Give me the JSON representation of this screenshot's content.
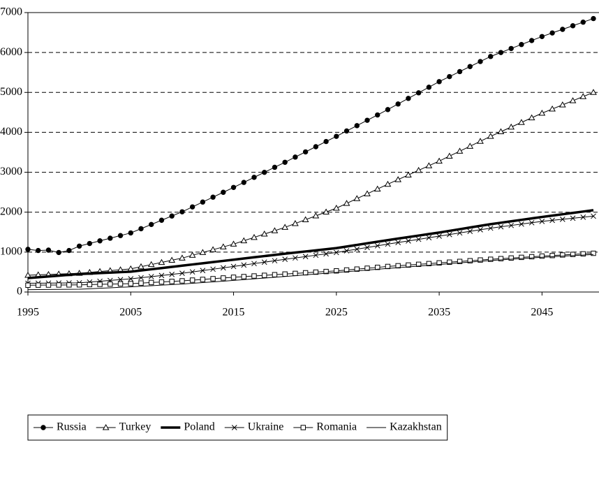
{
  "chart_data": {
    "type": "line",
    "x": [
      1995,
      1996,
      1997,
      1998,
      1999,
      2000,
      2001,
      2002,
      2003,
      2004,
      2005,
      2006,
      2007,
      2008,
      2009,
      2010,
      2011,
      2012,
      2013,
      2014,
      2015,
      2016,
      2017,
      2018,
      2019,
      2020,
      2021,
      2022,
      2023,
      2024,
      2025,
      2026,
      2027,
      2028,
      2029,
      2030,
      2031,
      2032,
      2033,
      2034,
      2035,
      2036,
      2037,
      2038,
      2039,
      2040,
      2041,
      2042,
      2043,
      2044,
      2045,
      2046,
      2047,
      2048,
      2049,
      2050
    ],
    "xlim": [
      1995,
      2050
    ],
    "xticks": [
      1995,
      2005,
      2015,
      2025,
      2035,
      2045
    ],
    "ylim": [
      0,
      7000
    ],
    "yticks": [
      0,
      1000,
      2000,
      3000,
      4000,
      5000,
      6000,
      7000
    ],
    "grid": true,
    "legend": "bottom",
    "series": [
      {
        "name": "Russia",
        "color": "#000000",
        "marker": "circle",
        "line_width": 1,
        "values": [
          1070,
          1040,
          1050,
          990,
          1040,
          1150,
          1216,
          1282,
          1348,
          1414,
          1480,
          1586,
          1692,
          1798,
          1904,
          2010,
          2132,
          2254,
          2376,
          2498,
          2620,
          2746,
          2872,
          2998,
          3124,
          3250,
          3380,
          3510,
          3640,
          3770,
          3900,
          4034,
          4168,
          4302,
          4436,
          4570,
          4710,
          4850,
          4990,
          5130,
          5270,
          5396,
          5522,
          5648,
          5774,
          5900,
          6000,
          6100,
          6200,
          6300,
          6400,
          6490,
          6580,
          6670,
          6760,
          6850
        ]
      },
      {
        "name": "Turkey",
        "color": "#000000",
        "marker": "triangle",
        "line_width": 1,
        "values": [
          420,
          430,
          440,
          450,
          460,
          470,
          492,
          514,
          536,
          558,
          580,
          634,
          688,
          742,
          796,
          850,
          920,
          990,
          1060,
          1130,
          1200,
          1284,
          1368,
          1452,
          1536,
          1620,
          1716,
          1812,
          1908,
          2004,
          2100,
          2220,
          2340,
          2460,
          2580,
          2700,
          2816,
          2932,
          3048,
          3164,
          3280,
          3404,
          3528,
          3652,
          3776,
          3900,
          4016,
          4132,
          4248,
          4364,
          4480,
          4584,
          4688,
          4792,
          4896,
          5000
        ]
      },
      {
        "name": "Poland",
        "color": "#000000",
        "marker": "none",
        "line_width": 3.5,
        "values": [
          350,
          370,
          390,
          410,
          430,
          450,
          462,
          474,
          486,
          498,
          510,
          540,
          570,
          600,
          630,
          660,
          690,
          720,
          750,
          780,
          810,
          840,
          870,
          900,
          930,
          960,
          988,
          1016,
          1044,
          1072,
          1100,
          1140,
          1180,
          1220,
          1260,
          1300,
          1338,
          1376,
          1414,
          1452,
          1490,
          1532,
          1574,
          1616,
          1658,
          1700,
          1736,
          1772,
          1808,
          1844,
          1880,
          1914,
          1948,
          1982,
          2016,
          2050
        ]
      },
      {
        "name": "Ukraine",
        "color": "#000000",
        "marker": "x",
        "line_width": 1,
        "values": [
          220,
          222,
          224,
          226,
          228,
          230,
          250,
          270,
          290,
          310,
          330,
          358,
          386,
          414,
          442,
          470,
          504,
          538,
          572,
          606,
          640,
          676,
          712,
          748,
          784,
          820,
          854,
          888,
          922,
          956,
          990,
          1032,
          1074,
          1116,
          1158,
          1200,
          1240,
          1280,
          1320,
          1360,
          1400,
          1440,
          1480,
          1520,
          1560,
          1600,
          1634,
          1668,
          1702,
          1736,
          1770,
          1796,
          1822,
          1848,
          1874,
          1900
        ]
      },
      {
        "name": "Romania",
        "color": "#000000",
        "marker": "square",
        "line_width": 1,
        "values": [
          170,
          172,
          174,
          176,
          178,
          180,
          186,
          192,
          198,
          204,
          210,
          224,
          238,
          252,
          266,
          280,
          298,
          316,
          334,
          352,
          370,
          386,
          402,
          418,
          434,
          450,
          466,
          482,
          498,
          514,
          530,
          552,
          574,
          596,
          618,
          640,
          658,
          676,
          694,
          712,
          730,
          748,
          766,
          784,
          802,
          820,
          836,
          852,
          868,
          884,
          900,
          914,
          928,
          942,
          956,
          970
        ]
      },
      {
        "name": "Kazakhstan",
        "color": "#000000",
        "marker": "none",
        "line_width": 1,
        "values": [
          60,
          62,
          64,
          66,
          68,
          70,
          82,
          94,
          106,
          118,
          130,
          144,
          158,
          172,
          186,
          200,
          218,
          236,
          254,
          272,
          290,
          310,
          330,
          350,
          370,
          390,
          410,
          430,
          450,
          470,
          490,
          510,
          530,
          550,
          570,
          590,
          610,
          630,
          650,
          670,
          690,
          710,
          730,
          750,
          770,
          790,
          806,
          822,
          838,
          854,
          870,
          884,
          898,
          912,
          926,
          940
        ]
      }
    ]
  }
}
